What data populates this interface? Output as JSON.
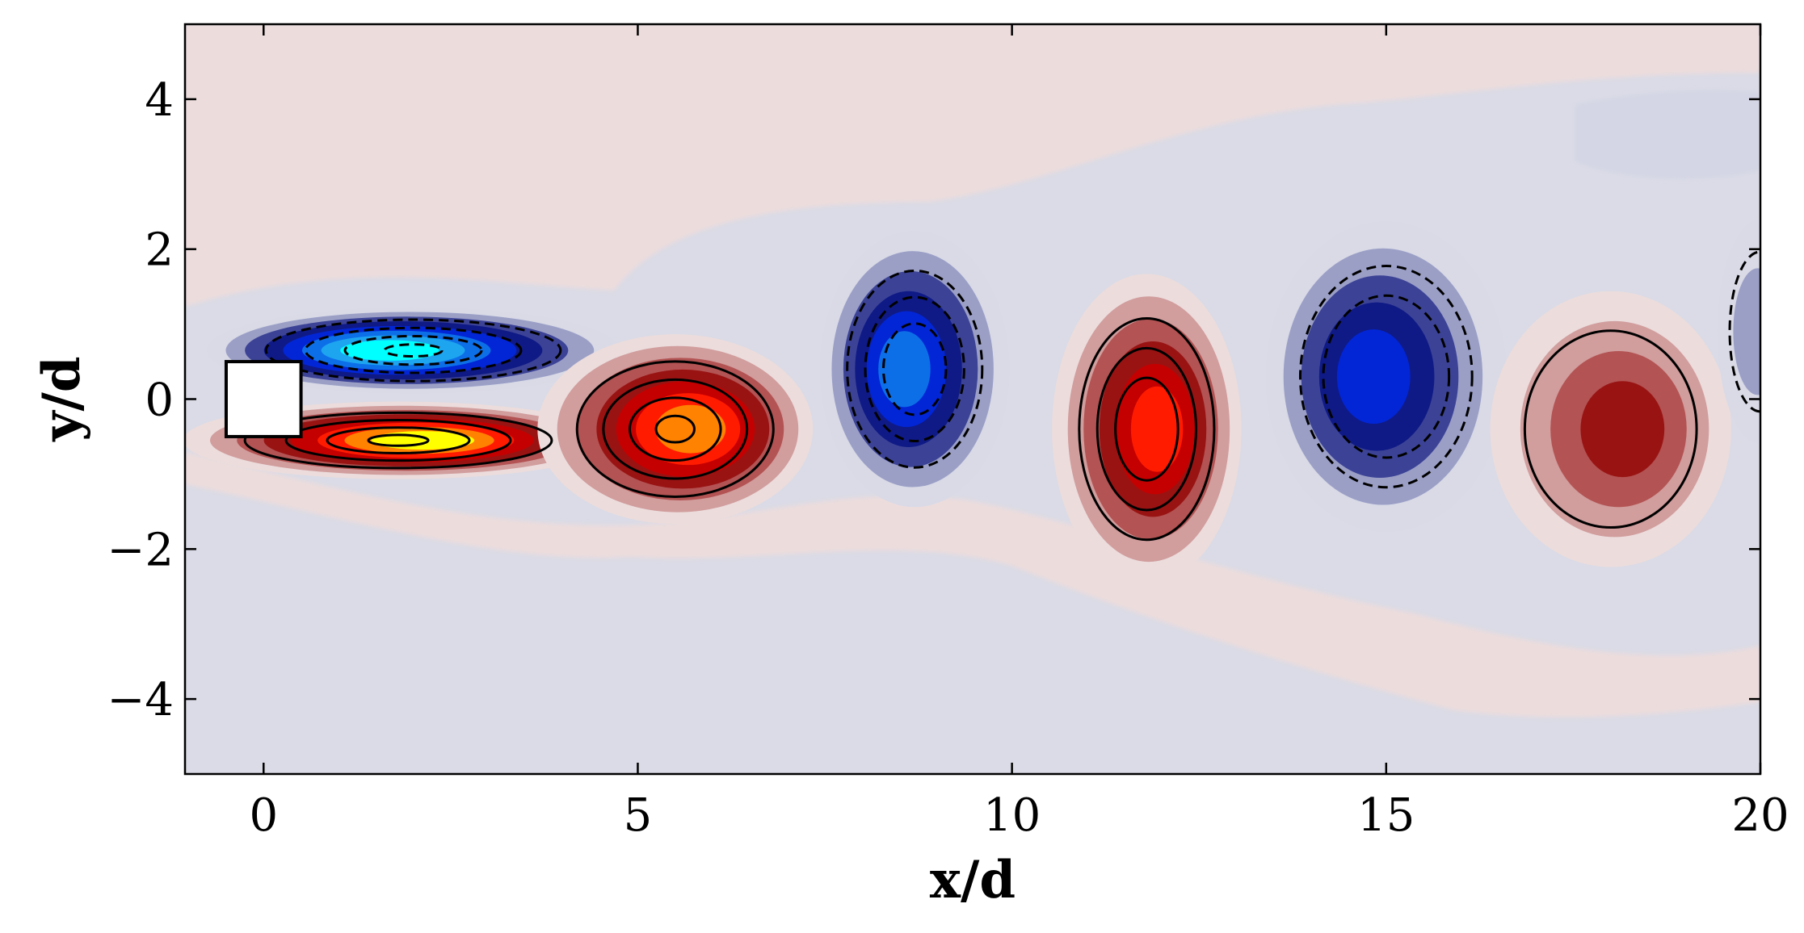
{
  "chart_data": {
    "type": "heatmap",
    "title": "",
    "xlabel": "x/d",
    "ylabel": "y/d",
    "xlim": [
      -1.05,
      20
    ],
    "ylim": [
      -5,
      5
    ],
    "x_ticks": [
      0,
      5,
      10,
      15,
      20
    ],
    "x_tick_labels": [
      "0",
      "5",
      "10",
      "15",
      "20"
    ],
    "y_ticks": [
      -4,
      -2,
      0,
      2,
      4
    ],
    "y_tick_labels": [
      "−4",
      "−2",
      "0",
      "2",
      "4"
    ],
    "grid": false,
    "legend": "none",
    "obstacle": {
      "shape": "square",
      "center": [
        0,
        0
      ],
      "side": 1
    },
    "colormap": {
      "negative": [
        "#d9dae6",
        "#9b9fc6",
        "#3c4396",
        "#0f1a86",
        "#0226d6",
        "#0d6fe8",
        "#1da5ef",
        "#00ffff"
      ],
      "positive": [
        "#ecdcdc",
        "#d19d9d",
        "#b35353",
        "#991313",
        "#c50000",
        "#ff1b00",
        "#ff8200",
        "#ffff00"
      ],
      "background": "#dadbe6"
    },
    "structures": [
      {
        "sign": "positive",
        "cx": 1.8,
        "cy": -0.55,
        "rx": 2.5,
        "ry": 0.45,
        "level": 8
      },
      {
        "sign": "negative",
        "cx": 2.0,
        "cy": 0.65,
        "rx": 2.4,
        "ry": 0.5,
        "level": 8
      },
      {
        "sign": "positive",
        "cx": 5.5,
        "cy": -0.4,
        "rx": 1.6,
        "ry": 1.1,
        "level": 7
      },
      {
        "sign": "negative",
        "cx": 8.7,
        "cy": 0.4,
        "rx": 1.1,
        "ry": 1.6,
        "level": 6
      },
      {
        "sign": "positive",
        "cx": 11.8,
        "cy": -0.4,
        "rx": 1.1,
        "ry": 1.8,
        "level": 6
      },
      {
        "sign": "negative",
        "cx": 15.0,
        "cy": 0.3,
        "rx": 1.4,
        "ry": 1.8,
        "level": 5
      },
      {
        "sign": "positive",
        "cx": 18.0,
        "cy": -0.4,
        "rx": 1.4,
        "ry": 1.6,
        "level": 4
      },
      {
        "sign": "negative",
        "cx": 20.0,
        "cy": 0.9,
        "rx": 0.5,
        "ry": 1.3,
        "level": 2
      }
    ]
  }
}
